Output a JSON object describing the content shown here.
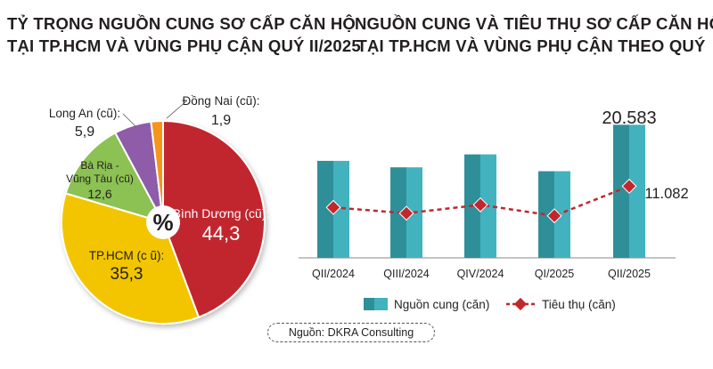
{
  "titles": {
    "left_line1": "TỶ TRỌNG NGUỒN CUNG SƠ CẤP CĂN HỘ",
    "left_line2": "TẠI TP.HCM VÀ VÙNG PHỤ CẬN QUÝ II/2025",
    "right_line1": "NGUỒN CUNG VÀ TIÊU THỤ SƠ CẤP CĂN HỘ",
    "right_line2": "TẠI TP.HCM VÀ VÙNG PHỤ CẬN THEO QUÝ"
  },
  "source": "Nguồn: DKRA Consulting",
  "chart_data": [
    {
      "type": "pie",
      "title": "TỶ TRỌNG NGUỒN CUNG SƠ CẤP CĂN HỘ TẠI TP.HCM VÀ VÙNG PHỤ CẬN QUÝ II/2025",
      "unit_label": "%",
      "slices": [
        {
          "name": "Bình Dương (cũ):",
          "value": 44.3,
          "value_label": "44,3",
          "color": "#c1272d"
        },
        {
          "name": "TP.HCM (c ũ):",
          "value": 35.3,
          "value_label": "35,3",
          "color": "#f2c500"
        },
        {
          "name_line1": "Bà Rịa -",
          "name_line2": "Vũng Tàu (cũ)",
          "value": 12.6,
          "value_label": "12,6",
          "color": "#8cc152"
        },
        {
          "name": "Long An (cũ):",
          "value": 5.9,
          "value_label": "5,9",
          "color": "#8e5ca8"
        },
        {
          "name": "Đồng Nai (cũ):",
          "value": 1.9,
          "value_label": "1,9",
          "color": "#f7941d"
        }
      ]
    },
    {
      "type": "bar",
      "title": "NGUỒN CUNG VÀ TIÊU THỤ SƠ CẤP CĂN HỘ TẠI TP.HCM VÀ VÙNG PHỤ CẬN THEO QUÝ",
      "categories": [
        "QII/2024",
        "QIII/2024",
        "QIV/2024",
        "QI/2025",
        "QII/2025"
      ],
      "series": [
        {
          "name": "Nguồn cung (căn)",
          "type": "bar",
          "values": [
            15000,
            14000,
            16000,
            13400,
            20583
          ],
          "color": "#3aa6b3"
        },
        {
          "name": "Tiêu thụ (căn)",
          "type": "line",
          "values": [
            7800,
            6900,
            8200,
            6500,
            11082
          ],
          "color": "#c1272d"
        }
      ],
      "data_labels": {
        "bar_last": "20.583",
        "line_last": "11.082"
      },
      "ylim": [
        0,
        22000
      ],
      "legend": "bottom"
    }
  ]
}
